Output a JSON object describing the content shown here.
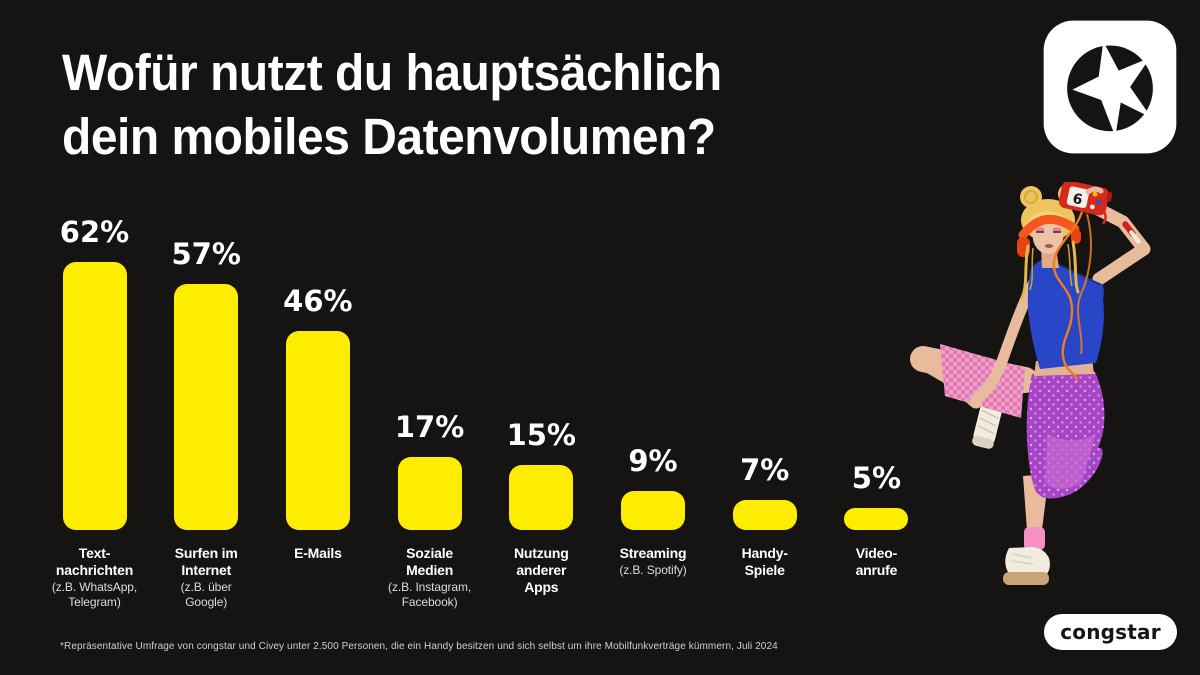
{
  "title": {
    "line1": "Wofür nutzt du hauptsächlich",
    "line2": "dein mobiles Datenvolumen?"
  },
  "footnote": "*Repräsentative Umfrage von congstar und Civey unter 2.500 Personen, die ein Handy besitzen und sich selbst um ihre Mobilfunkverträge kümmern, Juli 2024",
  "brand": {
    "wordmark": "congstar",
    "logo_icon": "congstar-star-icon",
    "illustration": "model-photo"
  },
  "colors": {
    "background": "#161413",
    "bar": "#ffed00",
    "text": "#ffffff",
    "muted_text": "#dcdcdc",
    "footnote_text": "#cfcfcf"
  },
  "chart_data": {
    "type": "bar",
    "title": "Wofür nutzt du hauptsächlich dein mobiles Datenvolumen?",
    "unit": "%",
    "ylim": [
      0,
      70
    ],
    "grid": false,
    "legend": false,
    "categories": [
      "Textnachrichten",
      "Surfen im Internet",
      "E-Mails",
      "Soziale Medien",
      "Nutzung anderer Apps",
      "Streaming",
      "Handy-Spiele",
      "Videoanrufe"
    ],
    "values": [
      62,
      57,
      46,
      17,
      15,
      9,
      7,
      5
    ],
    "bars": [
      {
        "value_label": "62%",
        "label": "Text-\nnachrichten",
        "sublabel": "(z.B. WhatsApp,\nTelegram)"
      },
      {
        "value_label": "57%",
        "label": "Surfen im\nInternet",
        "sublabel": "(z.B. über\nGoogle)"
      },
      {
        "value_label": "46%",
        "label": "E-Mails",
        "sublabel": ""
      },
      {
        "value_label": "17%",
        "label": "Soziale\nMedien",
        "sublabel": "(z.B. Instagram,\nFacebook)"
      },
      {
        "value_label": "15%",
        "label": "Nutzung\nanderer\nApps",
        "sublabel": ""
      },
      {
        "value_label": "9%",
        "label": "Streaming",
        "sublabel": "(z.B. Spotify)"
      },
      {
        "value_label": "7%",
        "label": "Handy-\nSpiele",
        "sublabel": ""
      },
      {
        "value_label": "5%",
        "label": "Video-\nanrufe",
        "sublabel": ""
      }
    ],
    "footnote": "*Repräsentative Umfrage von congstar und Civey unter 2.500 Personen, die ein Handy besitzen und sich selbst um ihre Mobilfunkverträge kümmern, Juli 2024"
  }
}
